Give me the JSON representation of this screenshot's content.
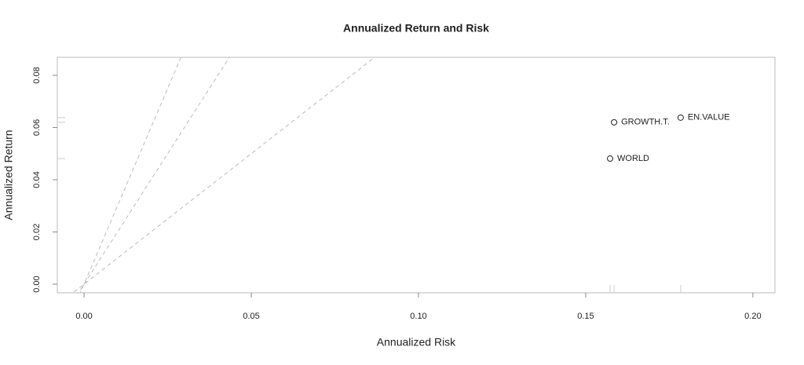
{
  "chart_data": {
    "type": "scatter",
    "title": "Annualized Return and Risk",
    "x_label": "Annualized Risk",
    "y_label": "Annualized Return",
    "labels": [
      "WORLD",
      "GROWTH.T.",
      "EN.VALUE"
    ],
    "x": [
      0.1573,
      0.1585,
      0.1784
    ],
    "values": [
      0.0481,
      0.062,
      0.0638
    ],
    "color": "#222222",
    "sharpe_lines": [
      1,
      2,
      3
    ],
    "xlim": [
      -0.008,
      0.2066
    ],
    "ylim": [
      -0.0033,
      0.0869
    ],
    "xticks": [
      {
        "value": 0,
        "label": "0.00"
      },
      {
        "value": 0.05,
        "label": "0.05"
      },
      {
        "value": 0.1,
        "label": "0.10"
      },
      {
        "value": 0.15,
        "label": "0.15"
      },
      {
        "value": 0.2,
        "label": "0.20"
      }
    ],
    "yticks": [
      {
        "value": 0,
        "label": "0.00"
      },
      {
        "value": 0.02,
        "label": "0.02"
      },
      {
        "value": 0.04,
        "label": "0.04"
      },
      {
        "value": 0.06,
        "label": "0.06"
      },
      {
        "value": 0.08,
        "label": "0.08"
      }
    ]
  }
}
